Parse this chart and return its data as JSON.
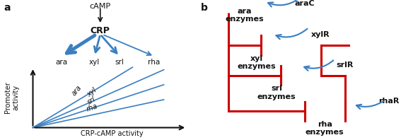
{
  "panel_a_label": "a",
  "panel_b_label": "b",
  "blue": "#3a7fc1",
  "red": "#cc0000",
  "black": "#111111",
  "crp_label": "CRP",
  "camp_label": "cAMP",
  "xaxis_label": "CRP-cAMP activity",
  "yaxis_label": "Promoter\nactivity",
  "gene_labels_top": [
    "ara",
    "xyl",
    "srl",
    "rha"
  ],
  "line_slopes": [
    0.85,
    0.62,
    0.46,
    0.3
  ],
  "line_labels": [
    "ara",
    "xyl",
    "srl",
    "rha"
  ],
  "label_angles": [
    50,
    38,
    30,
    20
  ]
}
